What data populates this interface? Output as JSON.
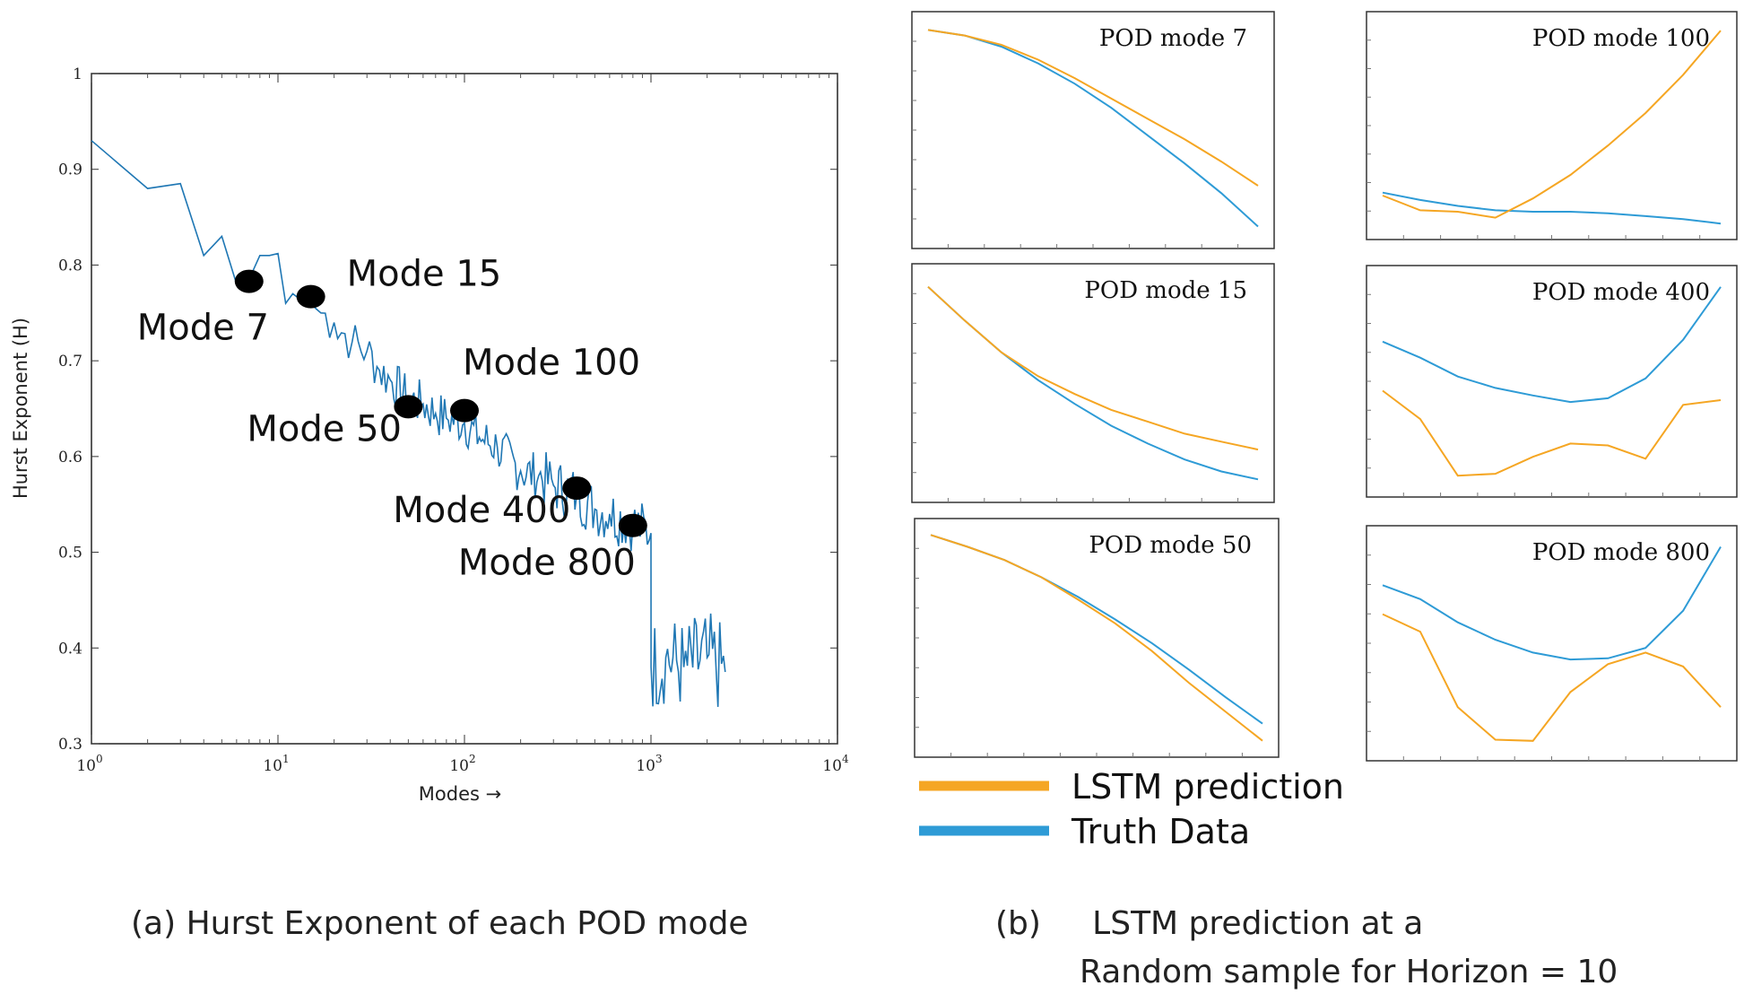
{
  "chart_data": [
    {
      "type": "line",
      "panel": "a",
      "title": "",
      "xlabel": "Modes →",
      "ylabel": "Hurst Exponent (H)",
      "xscale": "log",
      "xlim": [
        1,
        10000
      ],
      "ylim": [
        0.3,
        1.0
      ],
      "x_ticks": [
        {
          "base": "10",
          "exp": "0"
        },
        {
          "base": "10",
          "exp": "1"
        },
        {
          "base": "10",
          "exp": "2"
        },
        {
          "base": "10",
          "exp": "3"
        },
        {
          "base": "10",
          "exp": "4"
        }
      ],
      "y_ticks": [
        "1",
        "0.9",
        "0.8",
        "0.7",
        "0.6",
        "0.5",
        "0.4",
        "0.3"
      ],
      "line_color": "#1f77b4",
      "x": [
        1,
        2,
        3,
        4,
        5,
        6,
        7,
        8,
        9,
        10,
        11,
        12,
        13,
        14,
        15,
        17,
        20,
        25,
        30,
        35,
        40,
        50,
        60,
        70,
        80,
        100,
        120,
        150,
        200,
        250,
        300,
        400,
        500,
        600,
        800,
        1000,
        1001,
        1200,
        1500,
        2000,
        2500
      ],
      "y": [
        0.93,
        0.88,
        0.885,
        0.81,
        0.83,
        0.78,
        0.785,
        0.81,
        0.81,
        0.812,
        0.76,
        0.77,
        0.765,
        0.76,
        0.76,
        0.75,
        0.74,
        0.72,
        0.71,
        0.69,
        0.68,
        0.66,
        0.655,
        0.645,
        0.64,
        0.635,
        0.62,
        0.61,
        0.585,
        0.58,
        0.57,
        0.56,
        0.545,
        0.54,
        0.53,
        0.52,
        0.38,
        0.39,
        0.38,
        0.39,
        0.375
      ],
      "annotations": [
        {
          "label": "Mode 7",
          "x": 7,
          "y": 0.783
        },
        {
          "label": "Mode 15",
          "x": 15,
          "y": 0.767
        },
        {
          "label": "Mode 50",
          "x": 50,
          "y": 0.652
        },
        {
          "label": "Mode 100",
          "x": 100,
          "y": 0.648
        },
        {
          "label": "Mode 400",
          "x": 400,
          "y": 0.567
        },
        {
          "label": "Mode 800",
          "x": 800,
          "y": 0.528
        }
      ]
    },
    {
      "type": "line",
      "panel": "b",
      "title": "POD mode 7",
      "x": [
        0,
        1,
        2,
        3,
        4,
        5,
        6,
        7,
        8,
        9
      ],
      "series": [
        {
          "name": "LSTM prediction",
          "values": [
            0.99,
            0.96,
            0.91,
            0.83,
            0.73,
            0.62,
            0.51,
            0.4,
            0.28,
            0.15
          ]
        },
        {
          "name": "Truth Data",
          "values": [
            0.99,
            0.96,
            0.9,
            0.81,
            0.7,
            0.57,
            0.42,
            0.27,
            0.11,
            -0.07
          ]
        }
      ]
    },
    {
      "type": "line",
      "panel": "b",
      "title": "POD mode 100",
      "x": [
        0,
        1,
        2,
        3,
        4,
        5,
        6,
        7,
        8,
        9
      ],
      "series": [
        {
          "name": "LSTM prediction",
          "values": [
            0.25,
            0.15,
            0.14,
            0.1,
            0.23,
            0.39,
            0.59,
            0.81,
            1.07,
            1.37
          ]
        },
        {
          "name": "Truth Data",
          "values": [
            0.27,
            0.22,
            0.18,
            0.15,
            0.14,
            0.14,
            0.13,
            0.11,
            0.09,
            0.06
          ]
        }
      ]
    },
    {
      "type": "line",
      "panel": "b",
      "title": "POD mode 15",
      "x": [
        0,
        1,
        2,
        3,
        4,
        5,
        6,
        7,
        8,
        9
      ],
      "series": [
        {
          "name": "LSTM prediction",
          "values": [
            0.97,
            0.8,
            0.64,
            0.52,
            0.43,
            0.35,
            0.29,
            0.23,
            0.19,
            0.15
          ]
        },
        {
          "name": "Truth Data",
          "values": [
            0.97,
            0.8,
            0.64,
            0.5,
            0.38,
            0.27,
            0.18,
            0.1,
            0.04,
            0.0
          ]
        }
      ]
    },
    {
      "type": "line",
      "panel": "b",
      "title": "POD mode 400",
      "x": [
        0,
        1,
        2,
        3,
        4,
        5,
        6,
        7,
        8,
        9
      ],
      "series": [
        {
          "name": "LSTM prediction",
          "values": [
            0.2,
            -0.1,
            -0.7,
            -0.68,
            -0.5,
            -0.36,
            -0.38,
            -0.52,
            0.05,
            0.1
          ]
        },
        {
          "name": "Truth Data",
          "values": [
            0.72,
            0.55,
            0.35,
            0.23,
            0.15,
            0.08,
            0.12,
            0.33,
            0.74,
            1.3
          ]
        }
      ]
    },
    {
      "type": "line",
      "panel": "b",
      "title": "POD mode 50",
      "x": [
        0,
        1,
        2,
        3,
        4,
        5,
        6,
        7,
        8,
        9
      ],
      "series": [
        {
          "name": "LSTM prediction",
          "values": [
            0.98,
            0.89,
            0.79,
            0.66,
            0.49,
            0.31,
            0.1,
            -0.14,
            -0.36,
            -0.58
          ]
        },
        {
          "name": "Truth Data",
          "values": [
            0.98,
            0.89,
            0.79,
            0.66,
            0.51,
            0.34,
            0.16,
            -0.04,
            -0.25,
            -0.45
          ]
        }
      ]
    },
    {
      "type": "line",
      "panel": "b",
      "title": "POD mode 800",
      "x": [
        0,
        1,
        2,
        3,
        4,
        5,
        6,
        7,
        8,
        9
      ],
      "series": [
        {
          "name": "LSTM prediction",
          "values": [
            0.45,
            0.3,
            -0.35,
            -0.63,
            -0.64,
            -0.22,
            0.02,
            0.12,
            0.0,
            -0.35
          ]
        },
        {
          "name": "Truth Data",
          "values": [
            0.7,
            0.58,
            0.38,
            0.23,
            0.12,
            0.06,
            0.07,
            0.16,
            0.48,
            1.03
          ]
        }
      ]
    }
  ],
  "legend": [
    {
      "label": "LSTM prediction",
      "color": "#f5a623"
    },
    {
      "label": "Truth Data",
      "color": "#2e9bd6"
    }
  ],
  "colors": {
    "lstm": "#f5a623",
    "truth": "#2e9bd6",
    "hurst": "#1f77b4"
  },
  "captions": {
    "a": "(a) Hurst Exponent of each POD mode",
    "b_line1": "(b)     LSTM prediction at a",
    "b_line2": "Random sample for Horizon = 10"
  }
}
